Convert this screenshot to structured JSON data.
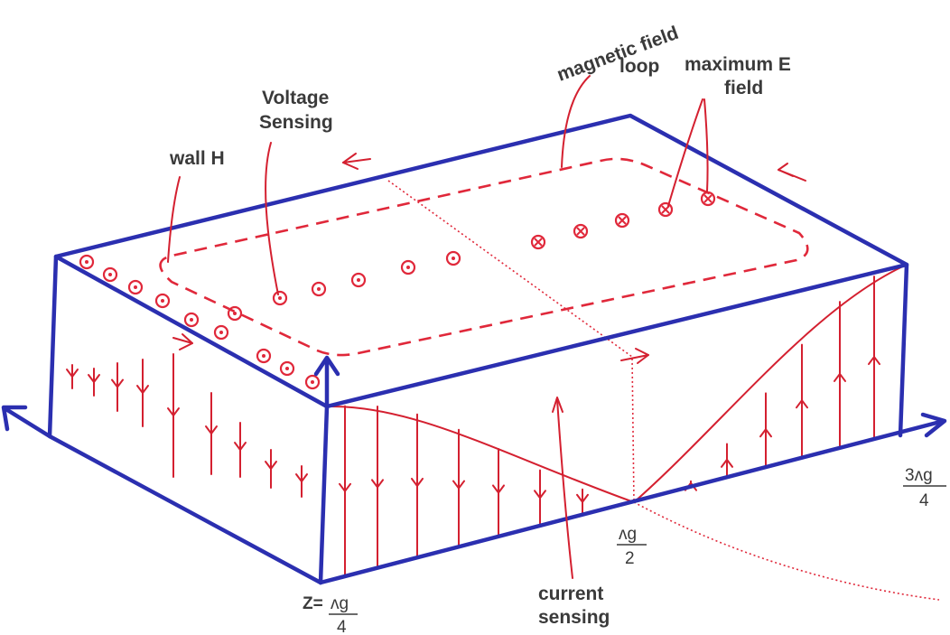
{
  "labels": {
    "magnetic_field_line1": "magnetic field",
    "magnetic_field_line2": "loop",
    "max_e_line1": "maximum E",
    "max_e_line2": "field",
    "voltage_line1": "Voltage",
    "voltage_line2": "Sensing",
    "wall_h": "wall H",
    "current_line1": "current",
    "current_line2": "sensing",
    "z_prefix": "Z=",
    "z_num": "ʌg",
    "z_den": "4",
    "half_num": "ʌg",
    "half_den": "2",
    "tq_num": "3ʌg",
    "tq_den": "4"
  },
  "colors": {
    "box": "#2b2fb0",
    "field": "#e0283a",
    "text": "#3a3a3a"
  }
}
